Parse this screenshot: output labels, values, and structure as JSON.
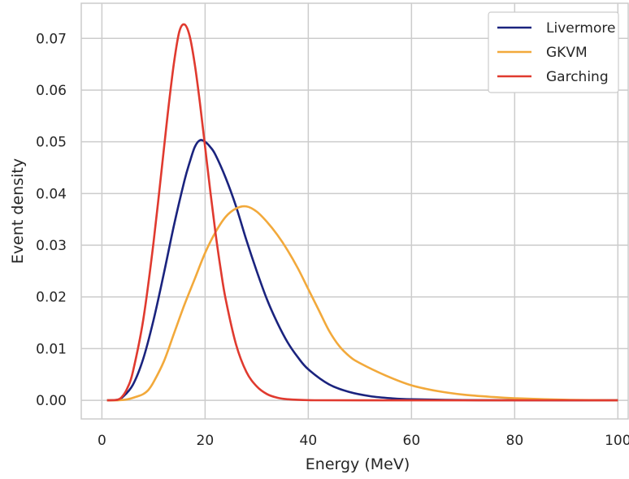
{
  "chart_data": {
    "type": "line",
    "xlabel": "Energy (MeV)",
    "ylabel": "Event density",
    "xlim": [
      -4,
      102
    ],
    "ylim": [
      -0.0036,
      0.0768
    ],
    "xticks": [
      0,
      20,
      40,
      60,
      80,
      100
    ],
    "xtick_labels": [
      "0",
      "20",
      "40",
      "60",
      "80",
      "100"
    ],
    "yticks": [
      0.0,
      0.01,
      0.02,
      0.03,
      0.04,
      0.05,
      0.06,
      0.07
    ],
    "ytick_labels": [
      "0.00",
      "0.01",
      "0.02",
      "0.03",
      "0.04",
      "0.05",
      "0.06",
      "0.07"
    ],
    "grid": true,
    "legend_position": "top-right",
    "series": [
      {
        "name": "Livermore",
        "color": "#1a237e",
        "points": [
          [
            1,
            0
          ],
          [
            3,
            0.0001
          ],
          [
            4,
            0.0006
          ],
          [
            6,
            0.003
          ],
          [
            8,
            0.008
          ],
          [
            10,
            0.0155
          ],
          [
            12,
            0.0245
          ],
          [
            14,
            0.034
          ],
          [
            16,
            0.0425
          ],
          [
            17,
            0.046
          ],
          [
            18,
            0.049
          ],
          [
            19,
            0.0503
          ],
          [
            20,
            0.05
          ],
          [
            21,
            0.049
          ],
          [
            22,
            0.0475
          ],
          [
            24,
            0.043
          ],
          [
            26,
            0.0375
          ],
          [
            28,
            0.031
          ],
          [
            30,
            0.025
          ],
          [
            32,
            0.0195
          ],
          [
            34,
            0.015
          ],
          [
            36,
            0.0112
          ],
          [
            38,
            0.0083
          ],
          [
            40,
            0.006
          ],
          [
            44,
            0.0031
          ],
          [
            48,
            0.0016
          ],
          [
            52,
            0.0008
          ],
          [
            56,
            0.0004
          ],
          [
            60,
            0.0002
          ],
          [
            70,
            5e-05
          ],
          [
            80,
            1e-05
          ],
          [
            100,
            0
          ]
        ]
      },
      {
        "name": "GKVM",
        "color": "#f2a93b",
        "points": [
          [
            1,
            0
          ],
          [
            3,
            0
          ],
          [
            5,
            0.0002
          ],
          [
            7,
            0.0008
          ],
          [
            8,
            0.0012
          ],
          [
            9,
            0.002
          ],
          [
            10,
            0.0035
          ],
          [
            12,
            0.0075
          ],
          [
            14,
            0.013
          ],
          [
            16,
            0.0185
          ],
          [
            18,
            0.0235
          ],
          [
            20,
            0.0285
          ],
          [
            22,
            0.0325
          ],
          [
            24,
            0.0355
          ],
          [
            26,
            0.0371
          ],
          [
            28,
            0.0375
          ],
          [
            30,
            0.0365
          ],
          [
            32,
            0.0345
          ],
          [
            34,
            0.032
          ],
          [
            36,
            0.029
          ],
          [
            38,
            0.0255
          ],
          [
            40,
            0.0215
          ],
          [
            42,
            0.0175
          ],
          [
            44,
            0.0135
          ],
          [
            46,
            0.0105
          ],
          [
            48,
            0.0085
          ],
          [
            50,
            0.0072
          ],
          [
            55,
            0.0048
          ],
          [
            60,
            0.0029
          ],
          [
            65,
            0.0018
          ],
          [
            70,
            0.0011
          ],
          [
            75,
            0.0007
          ],
          [
            80,
            0.0004
          ],
          [
            90,
            0.0001
          ],
          [
            100,
            0
          ]
        ]
      },
      {
        "name": "Garching",
        "color": "#e03a2f",
        "points": [
          [
            1,
            0
          ],
          [
            3,
            0.0001
          ],
          [
            4,
            0.0008
          ],
          [
            5,
            0.0025
          ],
          [
            6,
            0.0055
          ],
          [
            8,
            0.0155
          ],
          [
            10,
            0.0305
          ],
          [
            12,
            0.0485
          ],
          [
            13,
            0.0575
          ],
          [
            14,
            0.0655
          ],
          [
            15,
            0.0713
          ],
          [
            16,
            0.0727
          ],
          [
            17,
            0.0705
          ],
          [
            18,
            0.065
          ],
          [
            19,
            0.0575
          ],
          [
            20,
            0.049
          ],
          [
            21,
            0.0405
          ],
          [
            22,
            0.0325
          ],
          [
            23,
            0.0255
          ],
          [
            24,
            0.0195
          ],
          [
            26,
            0.0108
          ],
          [
            28,
            0.0055
          ],
          [
            30,
            0.0027
          ],
          [
            32,
            0.0012
          ],
          [
            34,
            0.0005
          ],
          [
            36,
            0.0002
          ],
          [
            40,
            3e-05
          ],
          [
            50,
            0
          ],
          [
            100,
            0
          ]
        ]
      }
    ]
  }
}
